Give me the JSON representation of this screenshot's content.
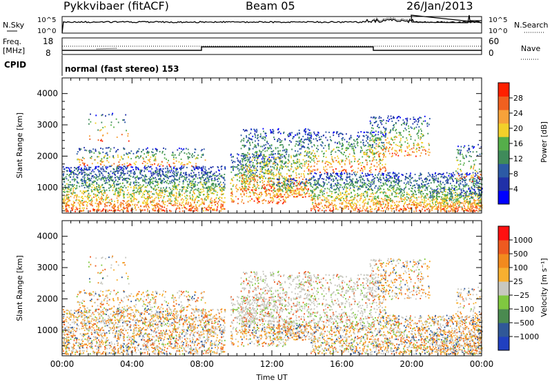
{
  "header": {
    "radar": "Pykkvibaer (fitACF)",
    "beam": "Beam 05",
    "date": "26/Jan/2013"
  },
  "param_panels": {
    "nsky_label": "N.Sky",
    "nsearch_label": "N.Search",
    "noise_ticks_top": "10^5",
    "noise_ticks_bottom": "10^0",
    "freq_label_top": "Freq.",
    "freq_label_bottom": "[MHz]",
    "freq_ticks_top": "18",
    "freq_ticks_bottom": "8",
    "nave_label": "Nave",
    "nave_ticks_top": "60",
    "nave_ticks_bottom": "0",
    "cpid_label": "CPID",
    "cpid_value": "normal (fast stereo) 153"
  },
  "chart_data": [
    {
      "type": "heatmap",
      "panel": "power",
      "ylabel": "Slant Range [km]",
      "xlabel": "",
      "ylim": [
        180,
        4500
      ],
      "yticks": [
        "4000",
        "3000",
        "2000",
        "1000"
      ],
      "xlim": [
        "00:00",
        "24:00"
      ],
      "colorbar": {
        "label": "Power [dB]",
        "ticks": [
          "28",
          "24",
          "20",
          "16",
          "12",
          "8",
          "4"
        ],
        "colors": [
          "#0000ff",
          "#2030a8",
          "#2c5aa5",
          "#3f8b5a",
          "#55ae4a",
          "#f2d02a",
          "#f7a23a",
          "#f06020",
          "#ff2000"
        ]
      }
    },
    {
      "type": "heatmap",
      "panel": "velocity",
      "ylabel": "Slant Range [km]",
      "xlabel": "Time UT",
      "ylim": [
        180,
        4500
      ],
      "yticks": [
        "4000",
        "3000",
        "2000",
        "1000"
      ],
      "xticks": [
        "00:00",
        "04:00",
        "08:00",
        "12:00",
        "16:00",
        "20:00",
        "00:00"
      ],
      "colorbar": {
        "label": "Velocity [m s⁻¹]",
        "ticks": [
          "1000",
          "500",
          "100",
          "25",
          "−25",
          "−100",
          "−500",
          "−1000"
        ],
        "colors": [
          "#2040c0",
          "#305898",
          "#4a8a50",
          "#80c840",
          "#c8c8c0",
          "#f7b030",
          "#f28a1e",
          "#ee5a20",
          "#ff1010"
        ]
      }
    }
  ]
}
